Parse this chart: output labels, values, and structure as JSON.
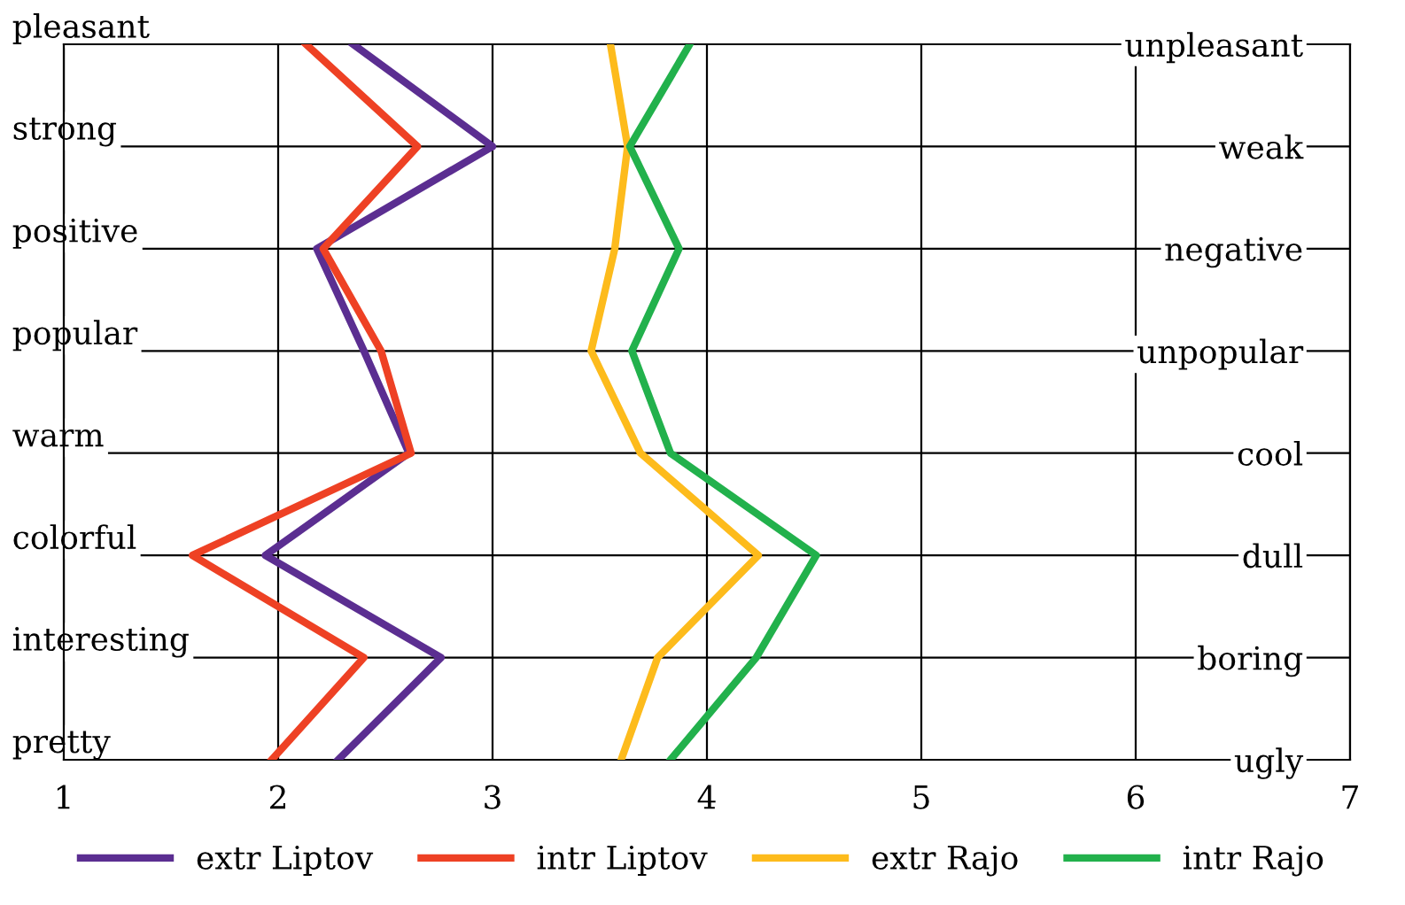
{
  "chart_data": {
    "type": "line",
    "orientation": "horizontal",
    "categories": [
      "pleasant",
      "strong",
      "positive",
      "popular",
      "warm",
      "colorful",
      "interesting",
      "pretty"
    ],
    "y2_categories": [
      "unpleasant",
      "weak",
      "negative",
      "unpopular",
      "cool",
      "dull",
      "boring",
      "ugly"
    ],
    "series": [
      {
        "name": "extr Liptov",
        "color": "#5b2e91",
        "values": [
          2.35,
          3.0,
          2.18,
          2.4,
          2.61,
          1.94,
          2.76,
          2.28
        ]
      },
      {
        "name": "intr Liptov",
        "color": "#ee4124",
        "values": [
          2.13,
          2.65,
          2.21,
          2.48,
          2.62,
          1.6,
          2.4,
          1.97
        ]
      },
      {
        "name": "extr Rajo",
        "color": "#fdbb1c",
        "values": [
          3.55,
          3.63,
          3.57,
          3.46,
          3.69,
          4.24,
          3.77,
          3.6
        ]
      },
      {
        "name": "intr Rajo",
        "color": "#22b14c",
        "values": [
          3.92,
          3.64,
          3.87,
          3.65,
          3.83,
          4.51,
          4.23,
          3.83
        ]
      }
    ],
    "xlim": [
      1,
      7
    ],
    "xticks": [
      1,
      2,
      3,
      4,
      5,
      6,
      7
    ],
    "grid": true,
    "legend": "bottom",
    "marker": "none",
    "line_style": "solid"
  }
}
